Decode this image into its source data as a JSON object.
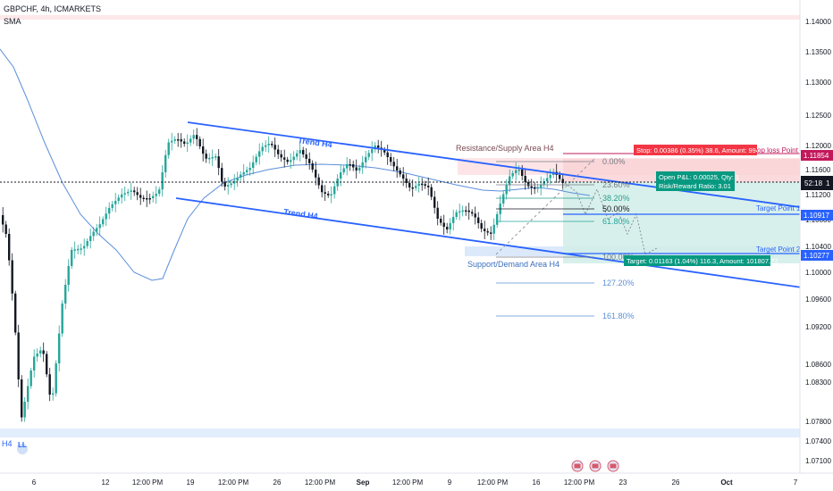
{
  "header": {
    "symbol": "GBPCHF, 4h, ICMARKETS",
    "indicator": "SMA"
  },
  "colors": {
    "up": "#26a69a",
    "down": "#131722",
    "channel": "#2962ff",
    "sma": "#5b8fd9",
    "stop_badge": "#f23645",
    "target_badge": "#089981",
    "target_label": "#2962ff",
    "stop_label": "#c2185b",
    "current_price": "#131722"
  },
  "price_axis": {
    "ticks": [
      "1.14000",
      "1.13500",
      "1.13000",
      "1.12500",
      "1.12000",
      "1.11600",
      "1.11200",
      "1.10800",
      "1.10400",
      "1.10000",
      "1.09600",
      "1.09200",
      "1.08600",
      "1.08300",
      "1.07800",
      "1.07400",
      "1.07100"
    ],
    "badges": {
      "stop": "1.11854",
      "current_top": "1",
      "current_time": "52:18",
      "target_1": "1.10917",
      "target_2": "1.10277"
    }
  },
  "time_axis": [
    "6",
    "12",
    "12:00 PM",
    "19",
    "12:00 PM",
    "26",
    "12:00 PM",
    "Sep",
    "12:00 PM",
    "9",
    "12:00 PM",
    "16",
    "12:00 PM",
    "23",
    "26",
    "Oct",
    "7"
  ],
  "annotations": {
    "trend_upper": "Trend H4",
    "trend_lower": "Trend H4",
    "resistance": "Resistance/Supply Area H4",
    "support": "Support/Demand Area H4",
    "h4": "H4",
    "ll": "LL",
    "stop_info": "Stop: 0.00386 (0.35%) 38.6, Amount: 9946",
    "stop_loss_label": "op loss Point",
    "open_pl": "Open P&L: 0.00025, Qty: 1",
    "risk_reward": "Risk/Reward Ratio: 3.01",
    "target_info": "Target: 0.01163 (1.04%) 116.3, Amount: 101807.77",
    "target_1": "Target Point 1",
    "target_2": "Target Point 2"
  },
  "fib_levels": [
    "0.00%",
    "23.60%",
    "38.20%",
    "50.00%",
    "61.80%",
    "100.00%",
    "127.20%",
    "161.80%"
  ]
}
